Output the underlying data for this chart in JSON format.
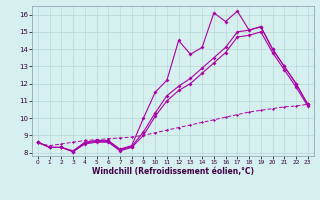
{
  "xlabel": "Windchill (Refroidissement éolien,°C)",
  "xlim": [
    -0.5,
    23.5
  ],
  "ylim": [
    7.8,
    16.5
  ],
  "xticks": [
    0,
    1,
    2,
    3,
    4,
    5,
    6,
    7,
    8,
    9,
    10,
    11,
    12,
    13,
    14,
    15,
    16,
    17,
    18,
    19,
    20,
    21,
    22,
    23
  ],
  "yticks": [
    8,
    9,
    10,
    11,
    12,
    13,
    14,
    15,
    16
  ],
  "bg_color": "#d6f0f0",
  "grid_color": "#b8d8d8",
  "line_color": "#aa00aa",
  "line1": [
    8.6,
    8.3,
    8.3,
    8.1,
    8.6,
    8.7,
    8.7,
    8.2,
    8.4,
    10.0,
    11.5,
    12.2,
    14.5,
    13.7,
    14.1,
    16.1,
    15.6,
    16.2,
    15.1,
    15.3,
    14.0,
    13.0,
    12.0,
    10.8
  ],
  "line2": [
    8.6,
    8.3,
    8.3,
    8.05,
    8.55,
    8.65,
    8.65,
    8.15,
    8.35,
    9.2,
    10.3,
    11.3,
    11.85,
    12.3,
    12.9,
    13.5,
    14.1,
    15.0,
    15.1,
    15.3,
    14.0,
    13.0,
    12.0,
    10.8
  ],
  "line3": [
    8.6,
    8.3,
    8.3,
    8.05,
    8.5,
    8.6,
    8.6,
    8.1,
    8.3,
    9.0,
    10.1,
    11.0,
    11.6,
    12.0,
    12.6,
    13.2,
    13.8,
    14.7,
    14.8,
    15.0,
    13.8,
    12.8,
    11.8,
    10.7
  ],
  "line4": [
    8.55,
    8.4,
    8.5,
    8.6,
    8.7,
    8.75,
    8.8,
    8.85,
    8.9,
    9.0,
    9.15,
    9.3,
    9.45,
    9.6,
    9.75,
    9.9,
    10.05,
    10.2,
    10.35,
    10.45,
    10.55,
    10.65,
    10.7,
    10.8
  ]
}
